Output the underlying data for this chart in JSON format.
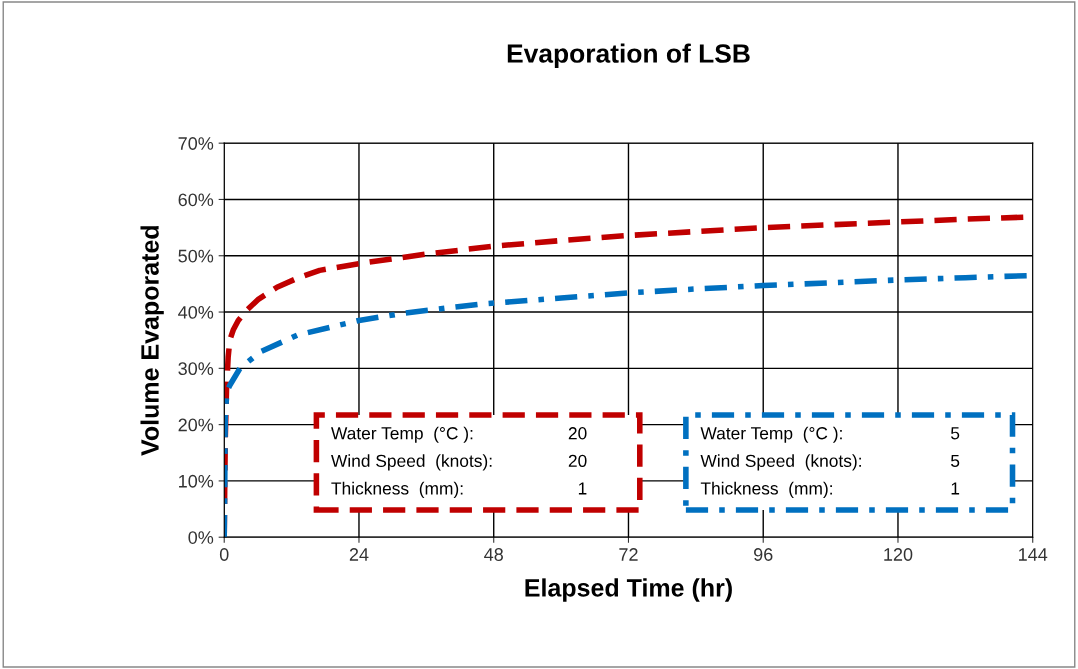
{
  "chart_data": {
    "type": "line",
    "title": "Evaporation of LSB",
    "xlabel": "Elapsed Time (hr)",
    "ylabel": "Volume Evaporated",
    "xlim": [
      0,
      144
    ],
    "xticks": [
      0,
      24,
      48,
      72,
      96,
      120,
      144
    ],
    "ylim": [
      0,
      0.7
    ],
    "yticks": [
      {
        "value": 0,
        "label": "0%"
      },
      {
        "value": 0.1,
        "label": "10%"
      },
      {
        "value": 0.2,
        "label": "20%"
      },
      {
        "value": 0.3,
        "label": "30%"
      },
      {
        "value": 0.4,
        "label": "40%"
      },
      {
        "value": 0.5,
        "label": "50%"
      },
      {
        "value": 0.6,
        "label": "60%"
      },
      {
        "value": 0.7,
        "label": "70%"
      }
    ],
    "grid": true,
    "legend": false,
    "marker": "none",
    "series": [
      {
        "color": "#c00000",
        "line_style": "dashed",
        "x": [
          0,
          0.1,
          0.2,
          0.4,
          0.7,
          1,
          1.6,
          2.5,
          4,
          6,
          9.4,
          13,
          17,
          24,
          36,
          48,
          60,
          72,
          84,
          96,
          108,
          120,
          132,
          144
        ],
        "values": [
          0,
          0.1,
          0.18,
          0.26,
          0.32,
          0.35,
          0.368,
          0.385,
          0.403,
          0.422,
          0.444,
          0.46,
          0.474,
          0.486,
          0.503,
          0.517,
          0.527,
          0.536,
          0.543,
          0.55,
          0.555,
          0.56,
          0.565,
          0.569
        ]
      },
      {
        "color": "#0070c0",
        "line_style": "dashdot",
        "x": [
          0,
          0.05,
          0.1,
          0.15,
          0.2,
          0.5,
          1,
          2.8,
          6.4,
          13,
          18.9,
          24,
          32,
          45.5,
          60,
          72,
          84,
          96,
          108,
          120,
          132,
          144
        ],
        "values": [
          0,
          0.05,
          0.1,
          0.18,
          0.22,
          0.26,
          0.27,
          0.3,
          0.329,
          0.359,
          0.373,
          0.385,
          0.398,
          0.414,
          0.425,
          0.434,
          0.441,
          0.447,
          0.452,
          0.457,
          0.461,
          0.465
        ]
      }
    ],
    "annotations": [
      "Water Temp  (°C ): 20",
      "Wind Speed  (knots): 20",
      "Thickness  (mm): 1",
      "Water Temp  (°C ): 5",
      "Wind Speed  (knots): 5",
      "Thickness  (mm): 1"
    ]
  }
}
